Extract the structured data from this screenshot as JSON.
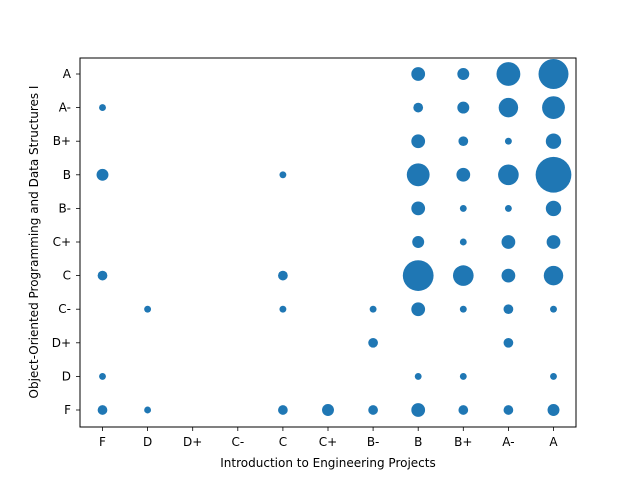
{
  "chart_data": {
    "type": "scatter",
    "xlabel": "Introduction to Engineering Projects",
    "ylabel": "Object-Oriented Programming and Data Structures I",
    "x_categories": [
      "F",
      "D",
      "D+",
      "C-",
      "C",
      "C+",
      "B-",
      "B",
      "B+",
      "A-",
      "A"
    ],
    "y_categories": [
      "F",
      "D",
      "D+",
      "C-",
      "C",
      "C+",
      "B-",
      "B",
      "B+",
      "A-",
      "A"
    ],
    "marker_color": "#1f77b4",
    "size_unit": "relative count of students",
    "points": [
      {
        "x": "F",
        "y": "F",
        "count": 2
      },
      {
        "x": "D",
        "y": "F",
        "count": 1
      },
      {
        "x": "C",
        "y": "F",
        "count": 2
      },
      {
        "x": "C+",
        "y": "F",
        "count": 3
      },
      {
        "x": "B-",
        "y": "F",
        "count": 2
      },
      {
        "x": "B",
        "y": "F",
        "count": 4
      },
      {
        "x": "B+",
        "y": "F",
        "count": 2
      },
      {
        "x": "A-",
        "y": "F",
        "count": 2
      },
      {
        "x": "A",
        "y": "F",
        "count": 3
      },
      {
        "x": "F",
        "y": "D",
        "count": 1
      },
      {
        "x": "B",
        "y": "D",
        "count": 1
      },
      {
        "x": "B+",
        "y": "D",
        "count": 1
      },
      {
        "x": "A",
        "y": "D",
        "count": 1
      },
      {
        "x": "B-",
        "y": "D+",
        "count": 2
      },
      {
        "x": "A-",
        "y": "D+",
        "count": 2
      },
      {
        "x": "D",
        "y": "C-",
        "count": 1
      },
      {
        "x": "C",
        "y": "C-",
        "count": 1
      },
      {
        "x": "B-",
        "y": "C-",
        "count": 1
      },
      {
        "x": "B",
        "y": "C-",
        "count": 4
      },
      {
        "x": "B+",
        "y": "C-",
        "count": 1
      },
      {
        "x": "A-",
        "y": "C-",
        "count": 2
      },
      {
        "x": "A",
        "y": "C-",
        "count": 1
      },
      {
        "x": "F",
        "y": "C",
        "count": 2
      },
      {
        "x": "C",
        "y": "C",
        "count": 2
      },
      {
        "x": "B",
        "y": "C",
        "count": 20
      },
      {
        "x": "B+",
        "y": "C",
        "count": 9
      },
      {
        "x": "A-",
        "y": "C",
        "count": 4
      },
      {
        "x": "A",
        "y": "C",
        "count": 8
      },
      {
        "x": "B",
        "y": "C+",
        "count": 3
      },
      {
        "x": "B+",
        "y": "C+",
        "count": 1
      },
      {
        "x": "A-",
        "y": "C+",
        "count": 4
      },
      {
        "x": "A",
        "y": "C+",
        "count": 4
      },
      {
        "x": "B",
        "y": "B-",
        "count": 4
      },
      {
        "x": "B+",
        "y": "B-",
        "count": 1
      },
      {
        "x": "A-",
        "y": "B-",
        "count": 1
      },
      {
        "x": "A",
        "y": "B-",
        "count": 5
      },
      {
        "x": "F",
        "y": "B",
        "count": 3
      },
      {
        "x": "C",
        "y": "B",
        "count": 1
      },
      {
        "x": "B",
        "y": "B",
        "count": 11
      },
      {
        "x": "B+",
        "y": "B",
        "count": 4
      },
      {
        "x": "A-",
        "y": "B",
        "count": 9
      },
      {
        "x": "A",
        "y": "B",
        "count": 27
      },
      {
        "x": "B",
        "y": "B+",
        "count": 4
      },
      {
        "x": "B+",
        "y": "B+",
        "count": 2
      },
      {
        "x": "A-",
        "y": "B+",
        "count": 1
      },
      {
        "x": "A",
        "y": "B+",
        "count": 5
      },
      {
        "x": "F",
        "y": "A-",
        "count": 1
      },
      {
        "x": "B",
        "y": "A-",
        "count": 2
      },
      {
        "x": "B+",
        "y": "A-",
        "count": 3
      },
      {
        "x": "A-",
        "y": "A-",
        "count": 8
      },
      {
        "x": "A",
        "y": "A-",
        "count": 11
      },
      {
        "x": "B",
        "y": "A",
        "count": 4
      },
      {
        "x": "B+",
        "y": "A",
        "count": 3
      },
      {
        "x": "A-",
        "y": "A",
        "count": 12
      },
      {
        "x": "A",
        "y": "A",
        "count": 19
      }
    ]
  }
}
